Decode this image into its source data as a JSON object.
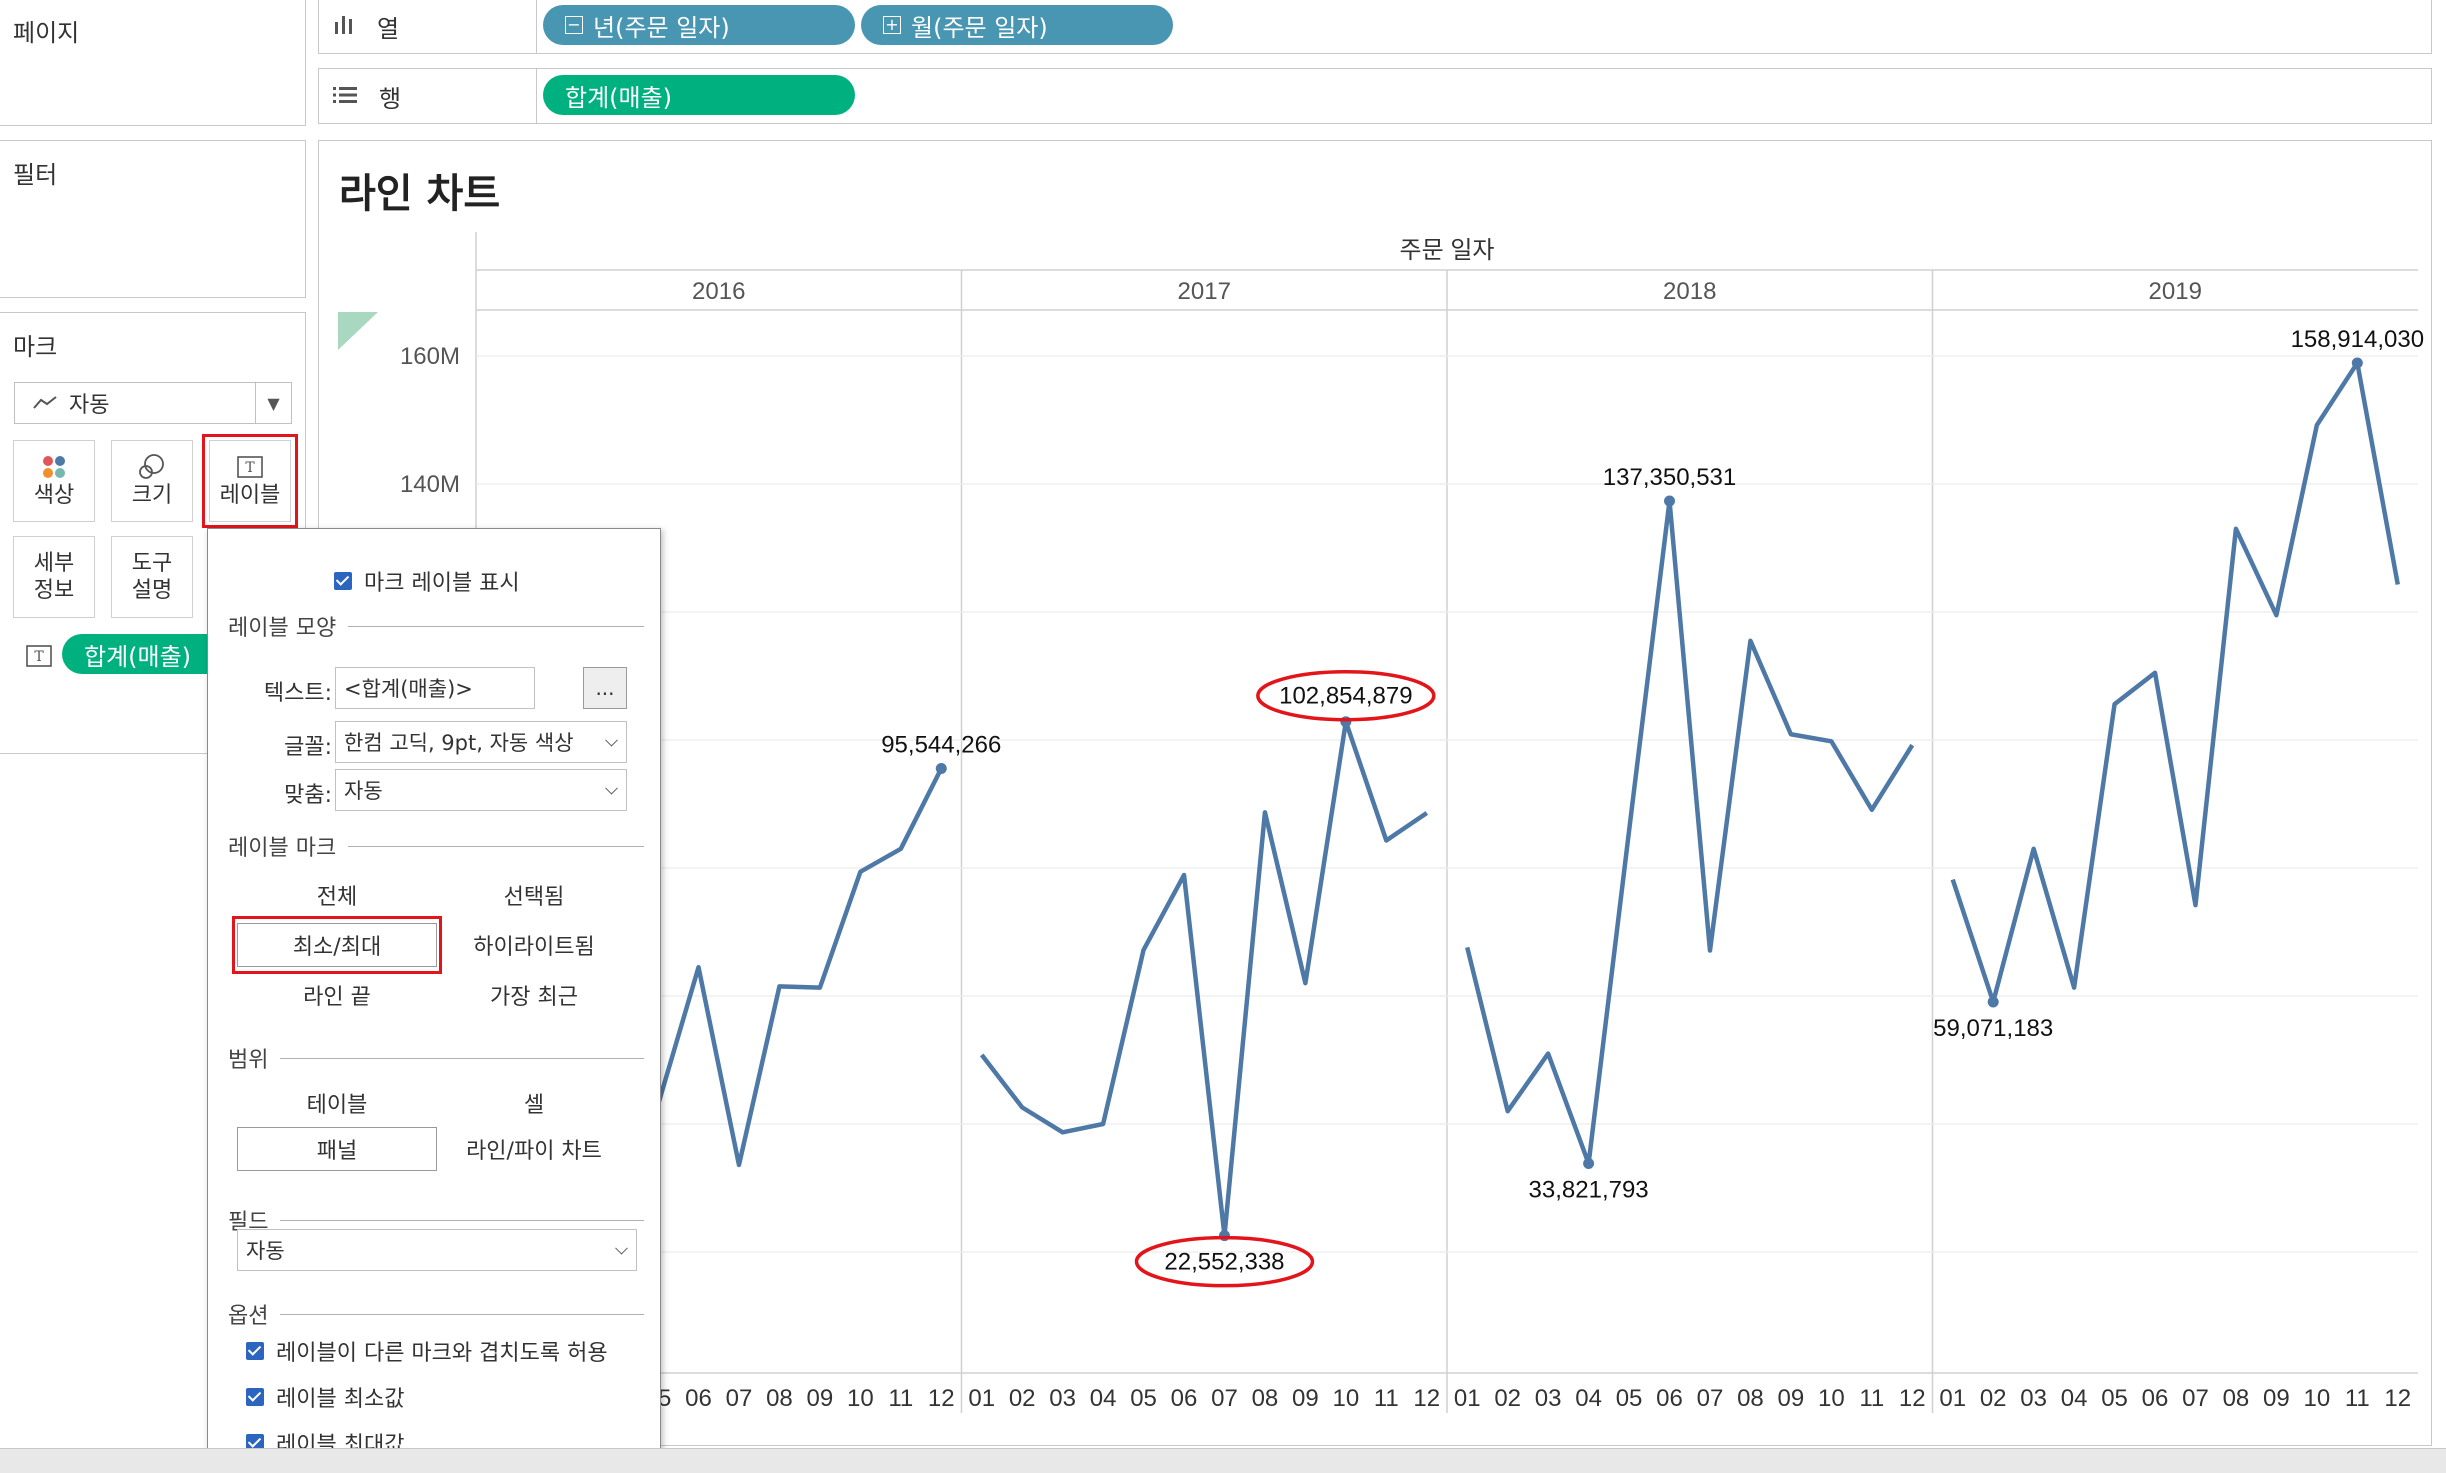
{
  "left_panel": {
    "pages_title": "페이지",
    "filters_title": "필터",
    "marks_title": "마크",
    "mark_type": "자동",
    "cards": {
      "color": "색상",
      "size": "크기",
      "label": "레이블",
      "detail_line1": "세부",
      "detail_line2": "정보",
      "tooltip_line1": "도구",
      "tooltip_line2": "설명"
    },
    "mark_pill": "합계(매출)"
  },
  "shelves": {
    "columns_label": "열",
    "rows_label": "행",
    "columns_pills": [
      "년(주문 일자)",
      "월(주문 일자)"
    ],
    "rows_pills": [
      "합계(매출)"
    ]
  },
  "view": {
    "title": "라인 차트",
    "header_title": "주문 일자"
  },
  "label_popup": {
    "show_labels": "마크 레이블 표시",
    "appearance_title": "레이블 모양",
    "text_label": "텍스트:",
    "text_value": "<합계(매출)>",
    "more_button": "...",
    "font_label": "글꼴:",
    "font_value": "한컴 고딕, 9pt, 자동 색상",
    "align_label": "맞춤:",
    "align_value": "자동",
    "marks_to_label_title": "레이블 마크",
    "opt_all": "전체",
    "opt_selected": "선택됨",
    "opt_minmax": "최소/최대",
    "opt_highlighted": "하이라이트됨",
    "opt_line_ends": "라인 끝",
    "opt_most_recent": "가장 최근",
    "scope_title": "범위",
    "opt_table": "테이블",
    "opt_cell": "셀",
    "opt_pane": "패널",
    "opt_line_pie": "라인/파이 차트",
    "field_title": "필드",
    "field_value": "자동",
    "options_title": "옵션",
    "opt_overlap": "레이블이 다른 마크와 겹치도록 허용",
    "opt_min": "레이블 최소값",
    "opt_max": "레이블 최대값"
  },
  "chart_data": {
    "type": "line",
    "title": "라인 차트",
    "column_header": "주문 일자",
    "years": [
      "2016",
      "2017",
      "2018",
      "2019"
    ],
    "month_ticks": [
      "01",
      "02",
      "03",
      "04",
      "05",
      "06",
      "07",
      "08",
      "09",
      "10",
      "11",
      "12"
    ],
    "y_ticks": [
      "140M",
      "160M"
    ],
    "ylim": [
      0,
      166000000
    ],
    "series": [
      {
        "year": "2016",
        "values": [
          null,
          null,
          null,
          null,
          43000000,
          64500000,
          33600000,
          61500000,
          61300000,
          79400000,
          83000000,
          95544266
        ]
      },
      {
        "year": "2017",
        "values": [
          50800000,
          42600000,
          38700000,
          40000000,
          67200000,
          78900000,
          22552338,
          88700000,
          62000000,
          102854879,
          84300000,
          88600000
        ]
      },
      {
        "year": "2018",
        "values": [
          67600000,
          42000000,
          51000000,
          33821793,
          85800000,
          137350531,
          67100000,
          115500000,
          100900000,
          99800000,
          89100000,
          99200000
        ]
      },
      {
        "year": "2019",
        "values": [
          78200000,
          59071183,
          83000000,
          61300000,
          105600000,
          110500000,
          74200000,
          133000000,
          119500000,
          149200000,
          158914030,
          124300000
        ]
      }
    ],
    "data_labels": [
      {
        "year": "2016",
        "month": "12",
        "text": "95,544,266"
      },
      {
        "year": "2017",
        "month": "07",
        "text": "22,552,338"
      },
      {
        "year": "2017",
        "month": "10",
        "text": "102,854,879"
      },
      {
        "year": "2018",
        "month": "04",
        "text": "33,821,793"
      },
      {
        "year": "2018",
        "month": "06",
        "text": "137,350,531"
      },
      {
        "year": "2019",
        "month": "02",
        "text": "59,071,183"
      },
      {
        "year": "2019",
        "month": "11",
        "text": "158,914,030"
      }
    ],
    "line_color": "#4e79a7",
    "highlight_color": "#e3141a"
  }
}
